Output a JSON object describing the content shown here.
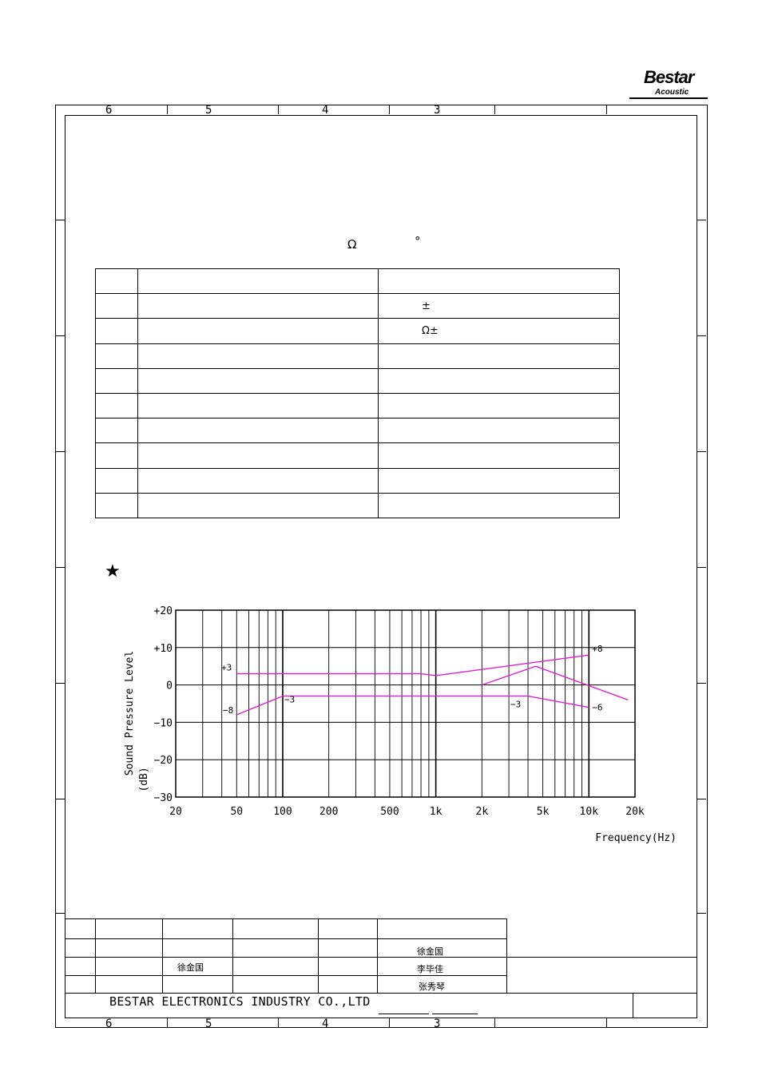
{
  "logo": {
    "brand": "Bestar",
    "sub": "Acoustic"
  },
  "zones": {
    "top": [
      "6",
      "5",
      "4",
      "3"
    ],
    "bottom": [
      "6",
      "5",
      "4",
      "3"
    ]
  },
  "symbols": {
    "ohm": "Ω",
    "degree": "°"
  },
  "spec_table": {
    "rows": [
      {
        "c3": ""
      },
      {
        "c3": "±"
      },
      {
        "c3": "Ω±"
      },
      {
        "c3": ""
      },
      {
        "c3": ""
      },
      {
        "c3": ""
      },
      {
        "c3": ""
      },
      {
        "c3": ""
      },
      {
        "c3": ""
      },
      {
        "c3": ""
      }
    ]
  },
  "section_marker": "★",
  "chart_data": {
    "type": "line",
    "x_scale": "log",
    "xlim": [
      20,
      20000
    ],
    "ylim": [
      -30,
      20
    ],
    "x_ticks": [
      {
        "value": 20,
        "label": "20"
      },
      {
        "value": 50,
        "label": "50"
      },
      {
        "value": 100,
        "label": "100"
      },
      {
        "value": 200,
        "label": "200"
      },
      {
        "value": 500,
        "label": "500"
      },
      {
        "value": 1000,
        "label": "1k"
      },
      {
        "value": 2000,
        "label": "2k"
      },
      {
        "value": 5000,
        "label": "5k"
      },
      {
        "value": 10000,
        "label": "10k"
      },
      {
        "value": 20000,
        "label": "20k"
      }
    ],
    "y_ticks": [
      {
        "value": 20,
        "label": "+20"
      },
      {
        "value": 10,
        "label": "+10"
      },
      {
        "value": 0,
        "label": "0"
      },
      {
        "value": -10,
        "label": "−10"
      },
      {
        "value": -20,
        "label": "−20"
      },
      {
        "value": -30,
        "label": "−30"
      }
    ],
    "ylabel": "Sound  Pressure  Level",
    "ylabel_unit": "(dB)",
    "xlabel": "Frequency(Hz)",
    "grid": true,
    "series": [
      {
        "x": [
          50,
          800,
          1000,
          10000
        ],
        "y": [
          3,
          3,
          2.5,
          8
        ]
      },
      {
        "x": [
          50,
          100,
          800,
          1000,
          4000,
          10000
        ],
        "y": [
          -8,
          -3,
          -3,
          -3,
          -3,
          -6
        ]
      },
      {
        "x": [
          2000,
          4500,
          18000
        ],
        "y": [
          0,
          5,
          -4
        ]
      }
    ],
    "annotations": [
      {
        "x": 50,
        "y": 3,
        "text": "+3"
      },
      {
        "x": 50,
        "y": -8,
        "text": "−8"
      },
      {
        "x": 100,
        "y": -3,
        "text": "−3"
      },
      {
        "x": 4000,
        "y": -3,
        "text": "−3"
      },
      {
        "x": 10000,
        "y": 8,
        "text": "+8"
      },
      {
        "x": 10000,
        "y": -6,
        "text": "−6"
      }
    ],
    "line_color": "#e020d0"
  },
  "title_block": {
    "names": {
      "r1": "徐金国",
      "r2a": "徐金国",
      "r2b": "李毕佳",
      "r3": "张秀琴"
    },
    "company": "BESTAR  ELECTRONICS  INDUSTRY  CO.,LTD"
  }
}
